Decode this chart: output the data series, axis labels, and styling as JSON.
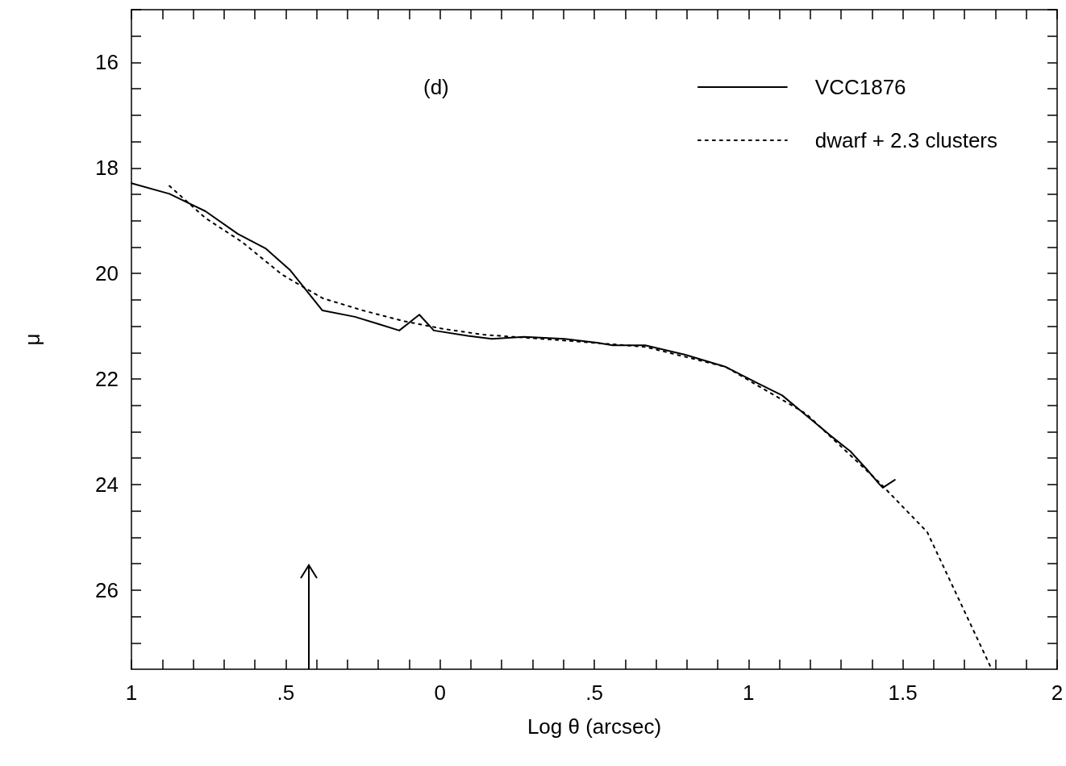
{
  "chart_data": {
    "type": "line",
    "xlabel": "Log θ (arcsec)",
    "ylabel": "μ",
    "annotations": [
      "(d)"
    ],
    "xlim": [
      -1,
      2
    ],
    "ylim": [
      27.5,
      15
    ],
    "xticks": [
      {
        "value": -1,
        "label": "1"
      },
      {
        "value": -0.9,
        "label": null
      },
      {
        "value": -0.8,
        "label": null
      },
      {
        "value": -0.7,
        "label": null
      },
      {
        "value": -0.6,
        "label": null
      },
      {
        "value": -0.5,
        "label": ".5"
      },
      {
        "value": -0.4,
        "label": null
      },
      {
        "value": -0.3,
        "label": null
      },
      {
        "value": -0.2,
        "label": null
      },
      {
        "value": -0.1,
        "label": null
      },
      {
        "value": 0,
        "label": "0"
      },
      {
        "value": 0.1,
        "label": null
      },
      {
        "value": 0.2,
        "label": null
      },
      {
        "value": 0.3,
        "label": null
      },
      {
        "value": 0.4,
        "label": null
      },
      {
        "value": 0.5,
        "label": ".5"
      },
      {
        "value": 0.6,
        "label": null
      },
      {
        "value": 0.7,
        "label": null
      },
      {
        "value": 0.8,
        "label": null
      },
      {
        "value": 0.9,
        "label": null
      },
      {
        "value": 1,
        "label": "1"
      },
      {
        "value": 1.1,
        "label": null
      },
      {
        "value": 1.2,
        "label": null
      },
      {
        "value": 1.3,
        "label": null
      },
      {
        "value": 1.4,
        "label": null
      },
      {
        "value": 1.5,
        "label": "1.5"
      },
      {
        "value": 1.6,
        "label": null
      },
      {
        "value": 1.7,
        "label": null
      },
      {
        "value": 1.8,
        "label": null
      },
      {
        "value": 1.9,
        "label": null
      },
      {
        "value": 2,
        "label": "2"
      }
    ],
    "yticks": [
      {
        "value": 15,
        "label": null
      },
      {
        "value": 15.5,
        "label": null
      },
      16,
      {
        "value": 16.5,
        "label": null
      },
      {
        "value": 17,
        "label": null
      },
      {
        "value": 17.5,
        "label": null
      },
      18,
      {
        "value": 18.5,
        "label": null
      },
      {
        "value": 19,
        "label": null
      },
      {
        "value": 19.5,
        "label": null
      },
      20,
      {
        "value": 20.5,
        "label": null
      },
      {
        "value": 21,
        "label": null
      },
      {
        "value": 21.5,
        "label": null
      },
      22,
      {
        "value": 22.5,
        "label": null
      },
      {
        "value": 23,
        "label": null
      },
      {
        "value": 23.5,
        "label": null
      },
      24,
      {
        "value": 24.5,
        "label": null
      },
      {
        "value": 25,
        "label": null
      },
      {
        "value": 25.5,
        "label": null
      },
      26,
      {
        "value": 26.5,
        "label": null
      },
      {
        "value": 27,
        "label": null
      }
    ],
    "grid": false,
    "legend": "top right",
    "marker": "none",
    "series": [
      {
        "name": "VCC1876",
        "color": "#000000",
        "line_style": "solid",
        "x": [
          -1,
          -0.877,
          -0.76,
          -0.655,
          -0.564,
          -0.485,
          -0.381,
          -0.276,
          -0.198,
          -0.132,
          -0.067,
          -0.02,
          0.09,
          0.168,
          0.273,
          0.403,
          0.508,
          0.56,
          0.665,
          0.795,
          0.926,
          1.03,
          1.109,
          1.187,
          1.265,
          1.33,
          1.383,
          1.422,
          1.435,
          1.474
        ],
        "values": [
          18.29,
          18.49,
          18.82,
          19.25,
          19.53,
          19.94,
          20.7,
          20.82,
          20.96,
          21.08,
          20.78,
          21.08,
          21.18,
          21.24,
          21.2,
          21.24,
          21.31,
          21.36,
          21.36,
          21.54,
          21.77,
          22.08,
          22.31,
          22.69,
          23.07,
          23.37,
          23.71,
          23.98,
          24.06,
          23.91
        ]
      },
      {
        "name": "dwarf + 2.3 clusters",
        "color": "#000000",
        "line_style": "dotted",
        "x": [
          -0.877,
          -0.76,
          -0.642,
          -0.512,
          -0.38,
          -0.25,
          -0.119,
          0.011,
          0.142,
          0.403,
          0.665,
          0.926,
          1.187,
          1.422,
          1.579,
          1.788
        ],
        "values": [
          18.34,
          18.95,
          19.4,
          20.02,
          20.47,
          20.7,
          20.9,
          21.05,
          21.16,
          21.27,
          21.39,
          21.77,
          22.66,
          23.95,
          24.9,
          27.5
        ]
      }
    ]
  }
}
